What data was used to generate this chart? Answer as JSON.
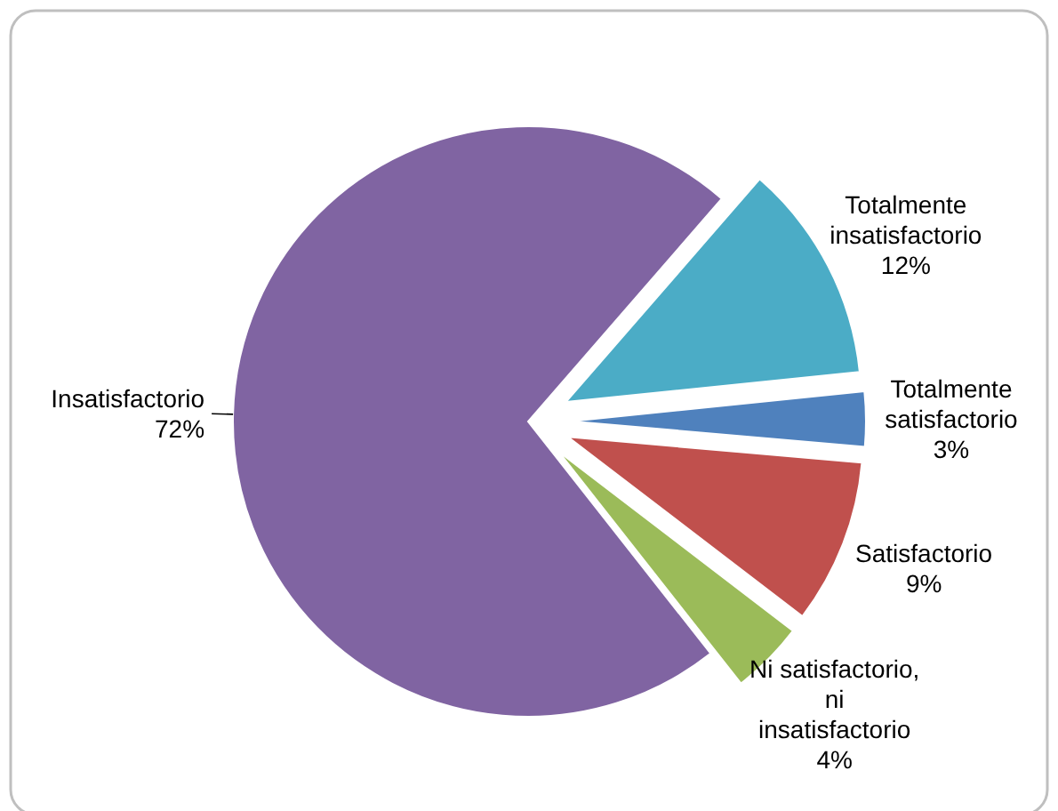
{
  "chart_data": {
    "type": "pie",
    "categories": [
      "Totalmente insatisfactorio",
      "Totalmente satisfactorio",
      "Satisfactorio",
      "Ni satisfactorio, ni insatisfactorio",
      "Insatisfactorio"
    ],
    "values": [
      12,
      3,
      9,
      4,
      72
    ],
    "colors": [
      "#4bacc6",
      "#4f81bd",
      "#c0504d",
      "#9bbb59",
      "#8064a2"
    ],
    "value_labels": [
      "12%",
      "3%",
      "9%",
      "4%",
      "72%"
    ]
  }
}
